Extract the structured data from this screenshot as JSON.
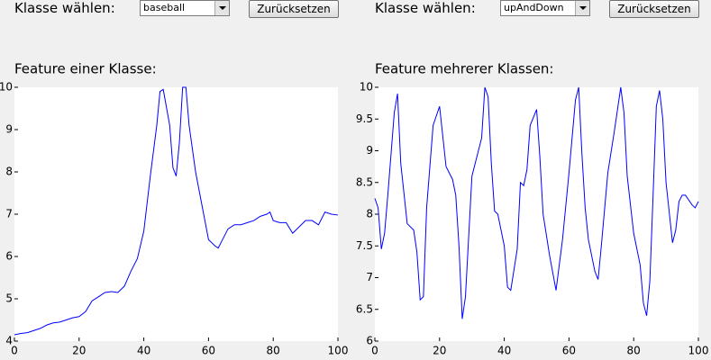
{
  "controls": [
    {
      "label": "Klasse wählen:",
      "selected": "baseball",
      "button": "Zurücksetzen"
    },
    {
      "label": "Klasse wählen:",
      "selected": "upAndDown",
      "button": "Zurücksetzen"
    }
  ],
  "chart_data": [
    {
      "type": "line",
      "title": "Feature einer Klasse:",
      "color": "#0000ff",
      "x": [
        0,
        2,
        4,
        6,
        8,
        10,
        12,
        14,
        16,
        18,
        20,
        22,
        24,
        26,
        28,
        30,
        32,
        34,
        36,
        38,
        40,
        42,
        44,
        45,
        46,
        48,
        49,
        50,
        51,
        52,
        53,
        54,
        56,
        58,
        60,
        62,
        63,
        64,
        66,
        68,
        70,
        72,
        74,
        76,
        78,
        79,
        80,
        82,
        84,
        86,
        88,
        90,
        92,
        94,
        96,
        98,
        100
      ],
      "values": [
        4.15,
        4.18,
        4.2,
        4.25,
        4.3,
        4.38,
        4.43,
        4.45,
        4.5,
        4.55,
        4.58,
        4.7,
        4.95,
        5.05,
        5.15,
        5.17,
        5.15,
        5.3,
        5.65,
        5.95,
        6.6,
        7.9,
        9.1,
        9.9,
        9.95,
        9.1,
        8.1,
        7.9,
        8.7,
        10,
        10,
        9.1,
        8.0,
        7.2,
        6.4,
        6.25,
        6.2,
        6.35,
        6.65,
        6.75,
        6.75,
        6.8,
        6.85,
        6.95,
        7.0,
        7.05,
        6.85,
        6.8,
        6.8,
        6.55,
        6.7,
        6.85,
        6.85,
        6.75,
        7.05,
        7.0,
        6.98
      ],
      "xlim": [
        0,
        100
      ],
      "xticks": [
        0,
        20,
        40,
        60,
        80,
        100
      ],
      "ylim": [
        4,
        10
      ],
      "yticks": [
        4,
        5,
        6,
        7,
        8,
        9,
        10
      ]
    },
    {
      "type": "line",
      "title": "Feature mehrerer Klassen:",
      "color": "#0000ff",
      "x": [
        0,
        1,
        2,
        3,
        4,
        6,
        7,
        8,
        10,
        12,
        13,
        14,
        15,
        16,
        18,
        20,
        22,
        24,
        25,
        26,
        27,
        28,
        30,
        32,
        33,
        34,
        35,
        36,
        37,
        38,
        40,
        41,
        42,
        44,
        45,
        46,
        47,
        48,
        50,
        51,
        52,
        54,
        56,
        58,
        60,
        62,
        63,
        64,
        65,
        66,
        68,
        69,
        70,
        72,
        74,
        76,
        77,
        78,
        80,
        82,
        83,
        84,
        85,
        86,
        87,
        88,
        89,
        90,
        92,
        93,
        94,
        95,
        96,
        98,
        99,
        100
      ],
      "values": [
        8.25,
        8.1,
        7.45,
        7.7,
        8.3,
        9.6,
        9.9,
        8.8,
        7.85,
        7.75,
        7.4,
        6.65,
        6.7,
        8.1,
        9.4,
        9.7,
        8.75,
        8.55,
        8.3,
        7.5,
        6.35,
        6.7,
        8.6,
        9.0,
        9.2,
        10,
        9.85,
        8.8,
        8.05,
        8.0,
        7.5,
        6.85,
        6.8,
        7.45,
        8.5,
        8.45,
        8.7,
        9.4,
        9.65,
        8.9,
        8.0,
        7.35,
        6.8,
        7.6,
        8.65,
        9.8,
        10,
        8.95,
        8.1,
        7.6,
        7.1,
        6.97,
        7.5,
        8.65,
        9.3,
        10,
        9.6,
        8.6,
        7.7,
        7.2,
        6.6,
        6.4,
        6.95,
        8.3,
        9.7,
        9.95,
        9.5,
        8.5,
        7.55,
        7.75,
        8.2,
        8.3,
        8.3,
        8.15,
        8.1,
        8.2
      ],
      "xlim": [
        0,
        100
      ],
      "xticks": [
        0,
        20,
        40,
        60,
        80,
        100
      ],
      "ylim": [
        6,
        10
      ],
      "yticks": [
        6,
        6.5,
        7,
        7.5,
        8,
        8.5,
        9,
        9.5,
        10
      ]
    }
  ]
}
